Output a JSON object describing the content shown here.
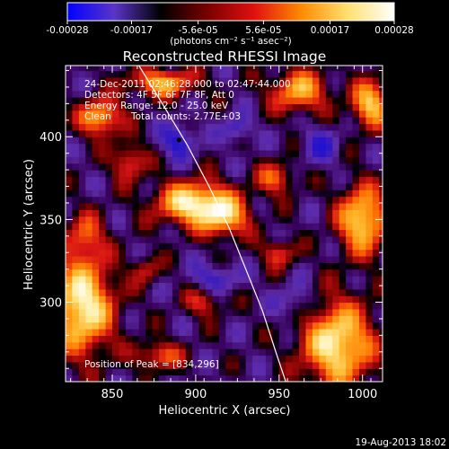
{
  "chart_data": {
    "type": "heatmap",
    "title": "Reconstructed RHESSI Image",
    "xlabel": "Heliocentric X (arcsec)",
    "ylabel": "Heliocentric Y (arcsec)",
    "xlim": [
      822,
      1012
    ],
    "ylim": [
      252,
      443
    ],
    "x_ticks": [
      850,
      900,
      950,
      1000
    ],
    "y_ticks": [
      300,
      350,
      400
    ],
    "annotation_lines": [
      "24-Dec-2011 02:46:28.000 to 02:47:44.000",
      "Detectors: 4F 5F 6F 7F 8F, Att 0",
      "Energy Range: 12.0 - 25.0 keV",
      "Clean",
      "Total counts: 2.77E+03"
    ],
    "peak_label": "Position of Peak = [834,296]",
    "peak_position": [
      834,
      296
    ],
    "colorbar": {
      "range": [
        -0.00028,
        0.00028
      ],
      "tick_labels": [
        "-0.00028",
        "-0.00017",
        "-5.6e-05",
        "5.6e-05",
        "0.00017",
        "0.00028"
      ],
      "unit_label": "(photons cm⁻² s⁻¹ asec⁻²)",
      "colors": [
        "#0000ff",
        "#5a35c8",
        "#000000",
        "#7a0000",
        "#e01010",
        "#ff8a00",
        "#ffe070",
        "#ffffff"
      ]
    },
    "limb_curve": [
      [
        866,
        443
      ],
      [
        880,
        420
      ],
      [
        895,
        395
      ],
      [
        908,
        370
      ],
      [
        920,
        345
      ],
      [
        930,
        320
      ],
      [
        940,
        295
      ],
      [
        948,
        270
      ],
      [
        954,
        252
      ]
    ],
    "emission_blobs": [
      {
        "x": 900,
        "y": 360,
        "sx": 16,
        "sy": 9,
        "amp": 1.0
      },
      {
        "x": 918,
        "y": 350,
        "sx": 10,
        "sy": 8,
        "amp": 0.6
      },
      {
        "x": 832,
        "y": 298,
        "sx": 13,
        "sy": 20,
        "amp": 1.0
      },
      {
        "x": 834,
        "y": 340,
        "sx": 8,
        "sy": 10,
        "amp": 0.45
      },
      {
        "x": 860,
        "y": 385,
        "sx": 7,
        "sy": 8,
        "amp": 0.5
      },
      {
        "x": 843,
        "y": 412,
        "sx": 9,
        "sy": 8,
        "amp": 0.75
      },
      {
        "x": 880,
        "y": 433,
        "sx": 14,
        "sy": 6,
        "amp": 0.7
      },
      {
        "x": 985,
        "y": 275,
        "sx": 15,
        "sy": 18,
        "amp": 0.95
      },
      {
        "x": 1000,
        "y": 350,
        "sx": 10,
        "sy": 14,
        "amp": 0.9
      },
      {
        "x": 962,
        "y": 428,
        "sx": 12,
        "sy": 9,
        "amp": 0.7
      },
      {
        "x": 948,
        "y": 375,
        "sx": 8,
        "sy": 7,
        "amp": 0.5
      },
      {
        "x": 950,
        "y": 330,
        "sx": 7,
        "sy": 6,
        "amp": 0.45
      },
      {
        "x": 905,
        "y": 300,
        "sx": 8,
        "sy": 6,
        "amp": 0.4
      },
      {
        "x": 878,
        "y": 268,
        "sx": 10,
        "sy": 6,
        "amp": 0.5
      },
      {
        "x": 870,
        "y": 320,
        "sx": 6,
        "sy": 6,
        "amp": 0.35
      },
      {
        "x": 1005,
        "y": 420,
        "sx": 8,
        "sy": 10,
        "amp": 0.8
      },
      {
        "x": 925,
        "y": 405,
        "sx": 6,
        "sy": 6,
        "amp": -0.35
      },
      {
        "x": 890,
        "y": 398,
        "sx": 7,
        "sy": 7,
        "amp": -0.45
      },
      {
        "x": 912,
        "y": 315,
        "sx": 9,
        "sy": 6,
        "amp": -0.35
      },
      {
        "x": 960,
        "y": 300,
        "sx": 8,
        "sy": 8,
        "amp": -0.3
      },
      {
        "x": 975,
        "y": 395,
        "sx": 8,
        "sy": 8,
        "amp": -0.3
      }
    ]
  },
  "footer": {
    "timestamp": "19-Aug-2013 18:02"
  }
}
